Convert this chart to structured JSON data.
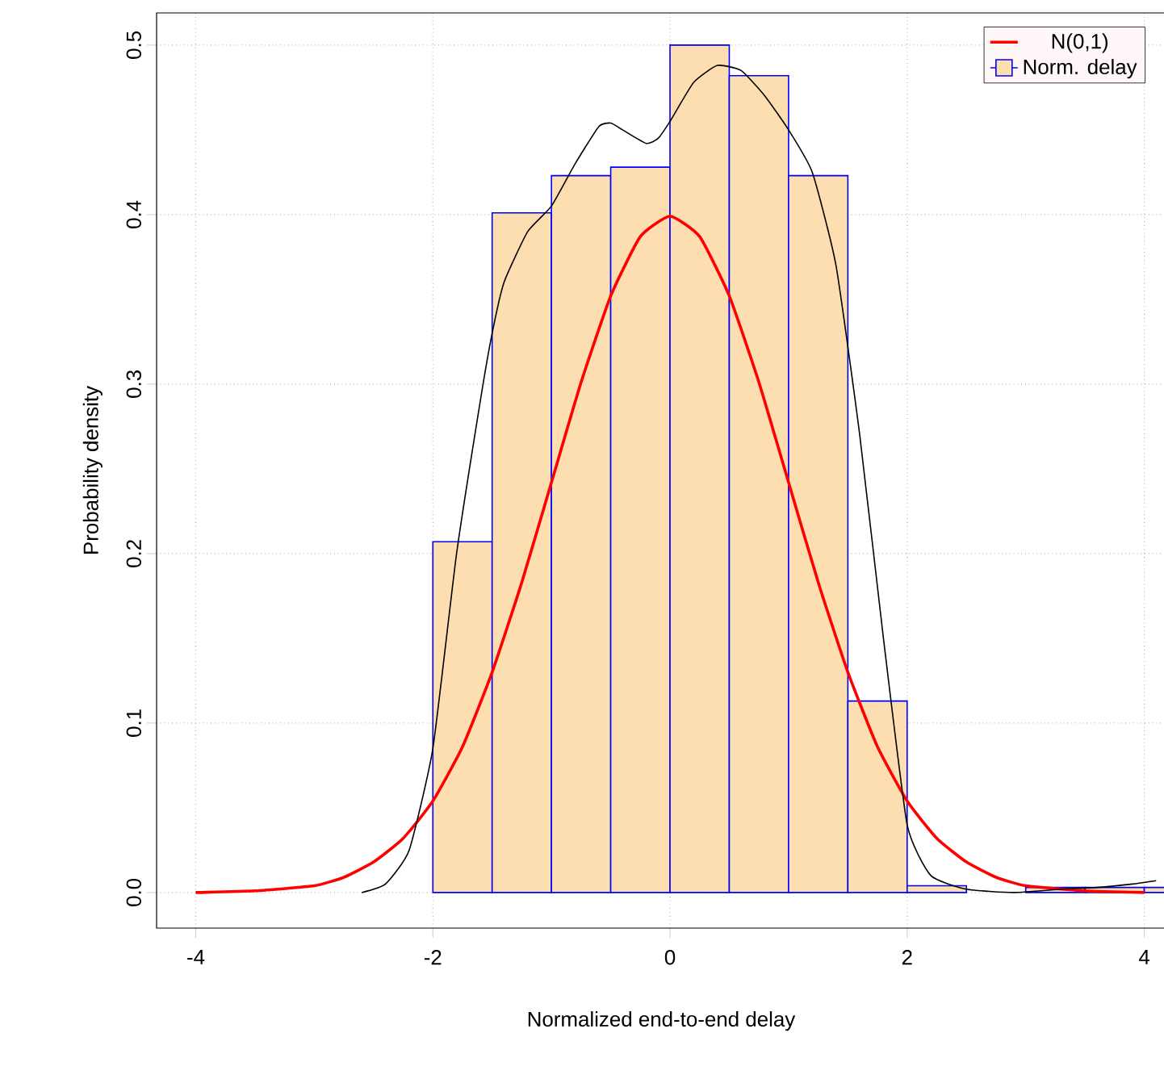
{
  "chart_data": {
    "type": "histogram",
    "xlabel": "Normalized end-to-end delay",
    "ylabel": "Probability density",
    "xlim": [
      -4.33,
      4.18
    ],
    "ylim": [
      -0.021,
      0.519
    ],
    "xticks": [
      -4,
      -2,
      0,
      2,
      4
    ],
    "yticks": [
      {
        "value": 0,
        "label": "0.0"
      },
      {
        "value": 0.1,
        "label": "0.1"
      },
      {
        "value": 0.2,
        "label": "0.2"
      },
      {
        "value": 0.3,
        "label": "0.3"
      },
      {
        "value": 0.4,
        "label": "0.4"
      },
      {
        "value": 0.5,
        "label": "0.5"
      }
    ],
    "grid": true,
    "legend": "top right",
    "series": [
      {
        "name": "Norm. delay",
        "color": "#fddeb0",
        "bins": [
          -2,
          -1.5,
          -1,
          -0.5,
          0,
          0.5,
          1,
          1.5,
          2,
          2.5,
          3,
          3.5,
          4,
          4.5
        ],
        "values": [
          0.207,
          0.401,
          0.423,
          0.428,
          0.5,
          0.482,
          0.423,
          0.113,
          0.004,
          null,
          0.003,
          0.003,
          0.003
        ]
      },
      {
        "type": "line",
        "name": "N(0,1)",
        "color": "#ff0000",
        "x": [
          -4,
          -3.5,
          -3,
          -2.75,
          -2.5,
          -2.25,
          -2,
          -1.75,
          -1.5,
          -1.25,
          -1,
          -0.75,
          -0.5,
          -0.25,
          0,
          0.25,
          0.5,
          0.75,
          1,
          1.25,
          1.5,
          1.75,
          2,
          2.25,
          2.5,
          2.75,
          3,
          3.5,
          4
        ],
        "values": [
          0,
          0.001,
          0.004,
          0.009,
          0.018,
          0.032,
          0.054,
          0.086,
          0.13,
          0.183,
          0.242,
          0.301,
          0.352,
          0.387,
          0.399,
          0.387,
          0.352,
          0.301,
          0.242,
          0.183,
          0.13,
          0.086,
          0.054,
          0.032,
          0.018,
          0.009,
          0.004,
          0.001,
          0
        ]
      },
      {
        "type": "line",
        "color": "#000000",
        "x": [
          -2.6,
          -2.4,
          -2.2,
          -2,
          -1.8,
          -1.6,
          -1.5,
          -1.4,
          -1.2,
          -1,
          -0.8,
          -0.6,
          -0.5,
          -0.4,
          -0.2,
          -0.1,
          0,
          0.2,
          0.4,
          0.6,
          0.8,
          1,
          1.2,
          1.4,
          1.6,
          1.8,
          2,
          2.2,
          2.5,
          2.9,
          3.3,
          3.6,
          3.9,
          4.1
        ],
        "values": [
          0,
          0.005,
          0.025,
          0.085,
          0.2,
          0.29,
          0.33,
          0.36,
          0.39,
          0.405,
          0.43,
          0.452,
          0.454,
          0.45,
          0.442,
          0.445,
          0.455,
          0.478,
          0.488,
          0.485,
          0.47,
          0.45,
          0.425,
          0.37,
          0.27,
          0.15,
          0.04,
          0.01,
          0.002,
          0,
          0.002,
          0.003,
          0.005,
          0.007
        ]
      }
    ]
  }
}
